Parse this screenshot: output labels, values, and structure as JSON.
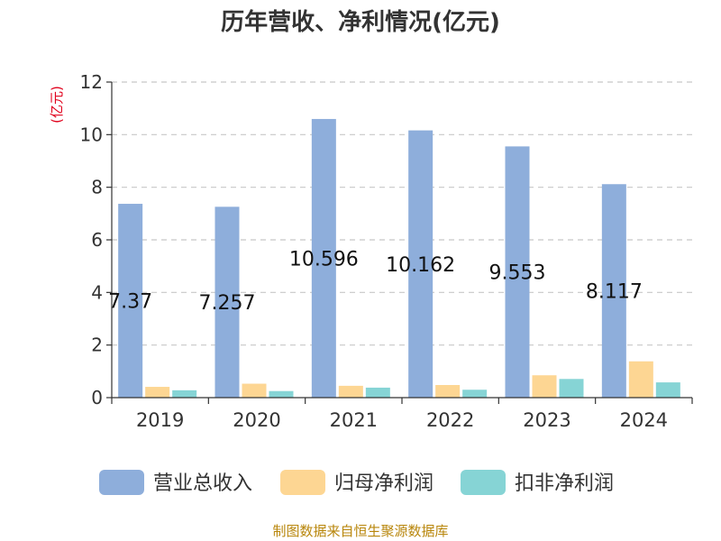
{
  "chart_data": {
    "type": "bar",
    "title": "历年营收、净利情况(亿元)",
    "unit_label": "(亿元)",
    "categories": [
      "2019",
      "2020",
      "2021",
      "2022",
      "2023",
      "2024"
    ],
    "ylim": [
      0,
      12
    ],
    "yticks": [
      "0",
      "2",
      "4",
      "6",
      "8",
      "10",
      "12"
    ],
    "grid": true,
    "legend_position": "bottom",
    "series": [
      {
        "name": "营业总收入",
        "color": "#8eaedb",
        "values": [
          7.37,
          7.257,
          10.596,
          10.162,
          9.553,
          8.117
        ],
        "labels": [
          "7.37",
          "7.257",
          "10.596",
          "10.162",
          "9.553",
          "8.117"
        ]
      },
      {
        "name": "归母净利润",
        "color": "#fdd693",
        "values": [
          0.41,
          0.53,
          0.45,
          0.48,
          0.85,
          1.38
        ]
      },
      {
        "name": "扣非净利润",
        "color": "#86d4d5",
        "values": [
          0.28,
          0.25,
          0.38,
          0.3,
          0.71,
          0.58
        ]
      }
    ],
    "source": "制图数据来自恒生聚源数据库"
  }
}
